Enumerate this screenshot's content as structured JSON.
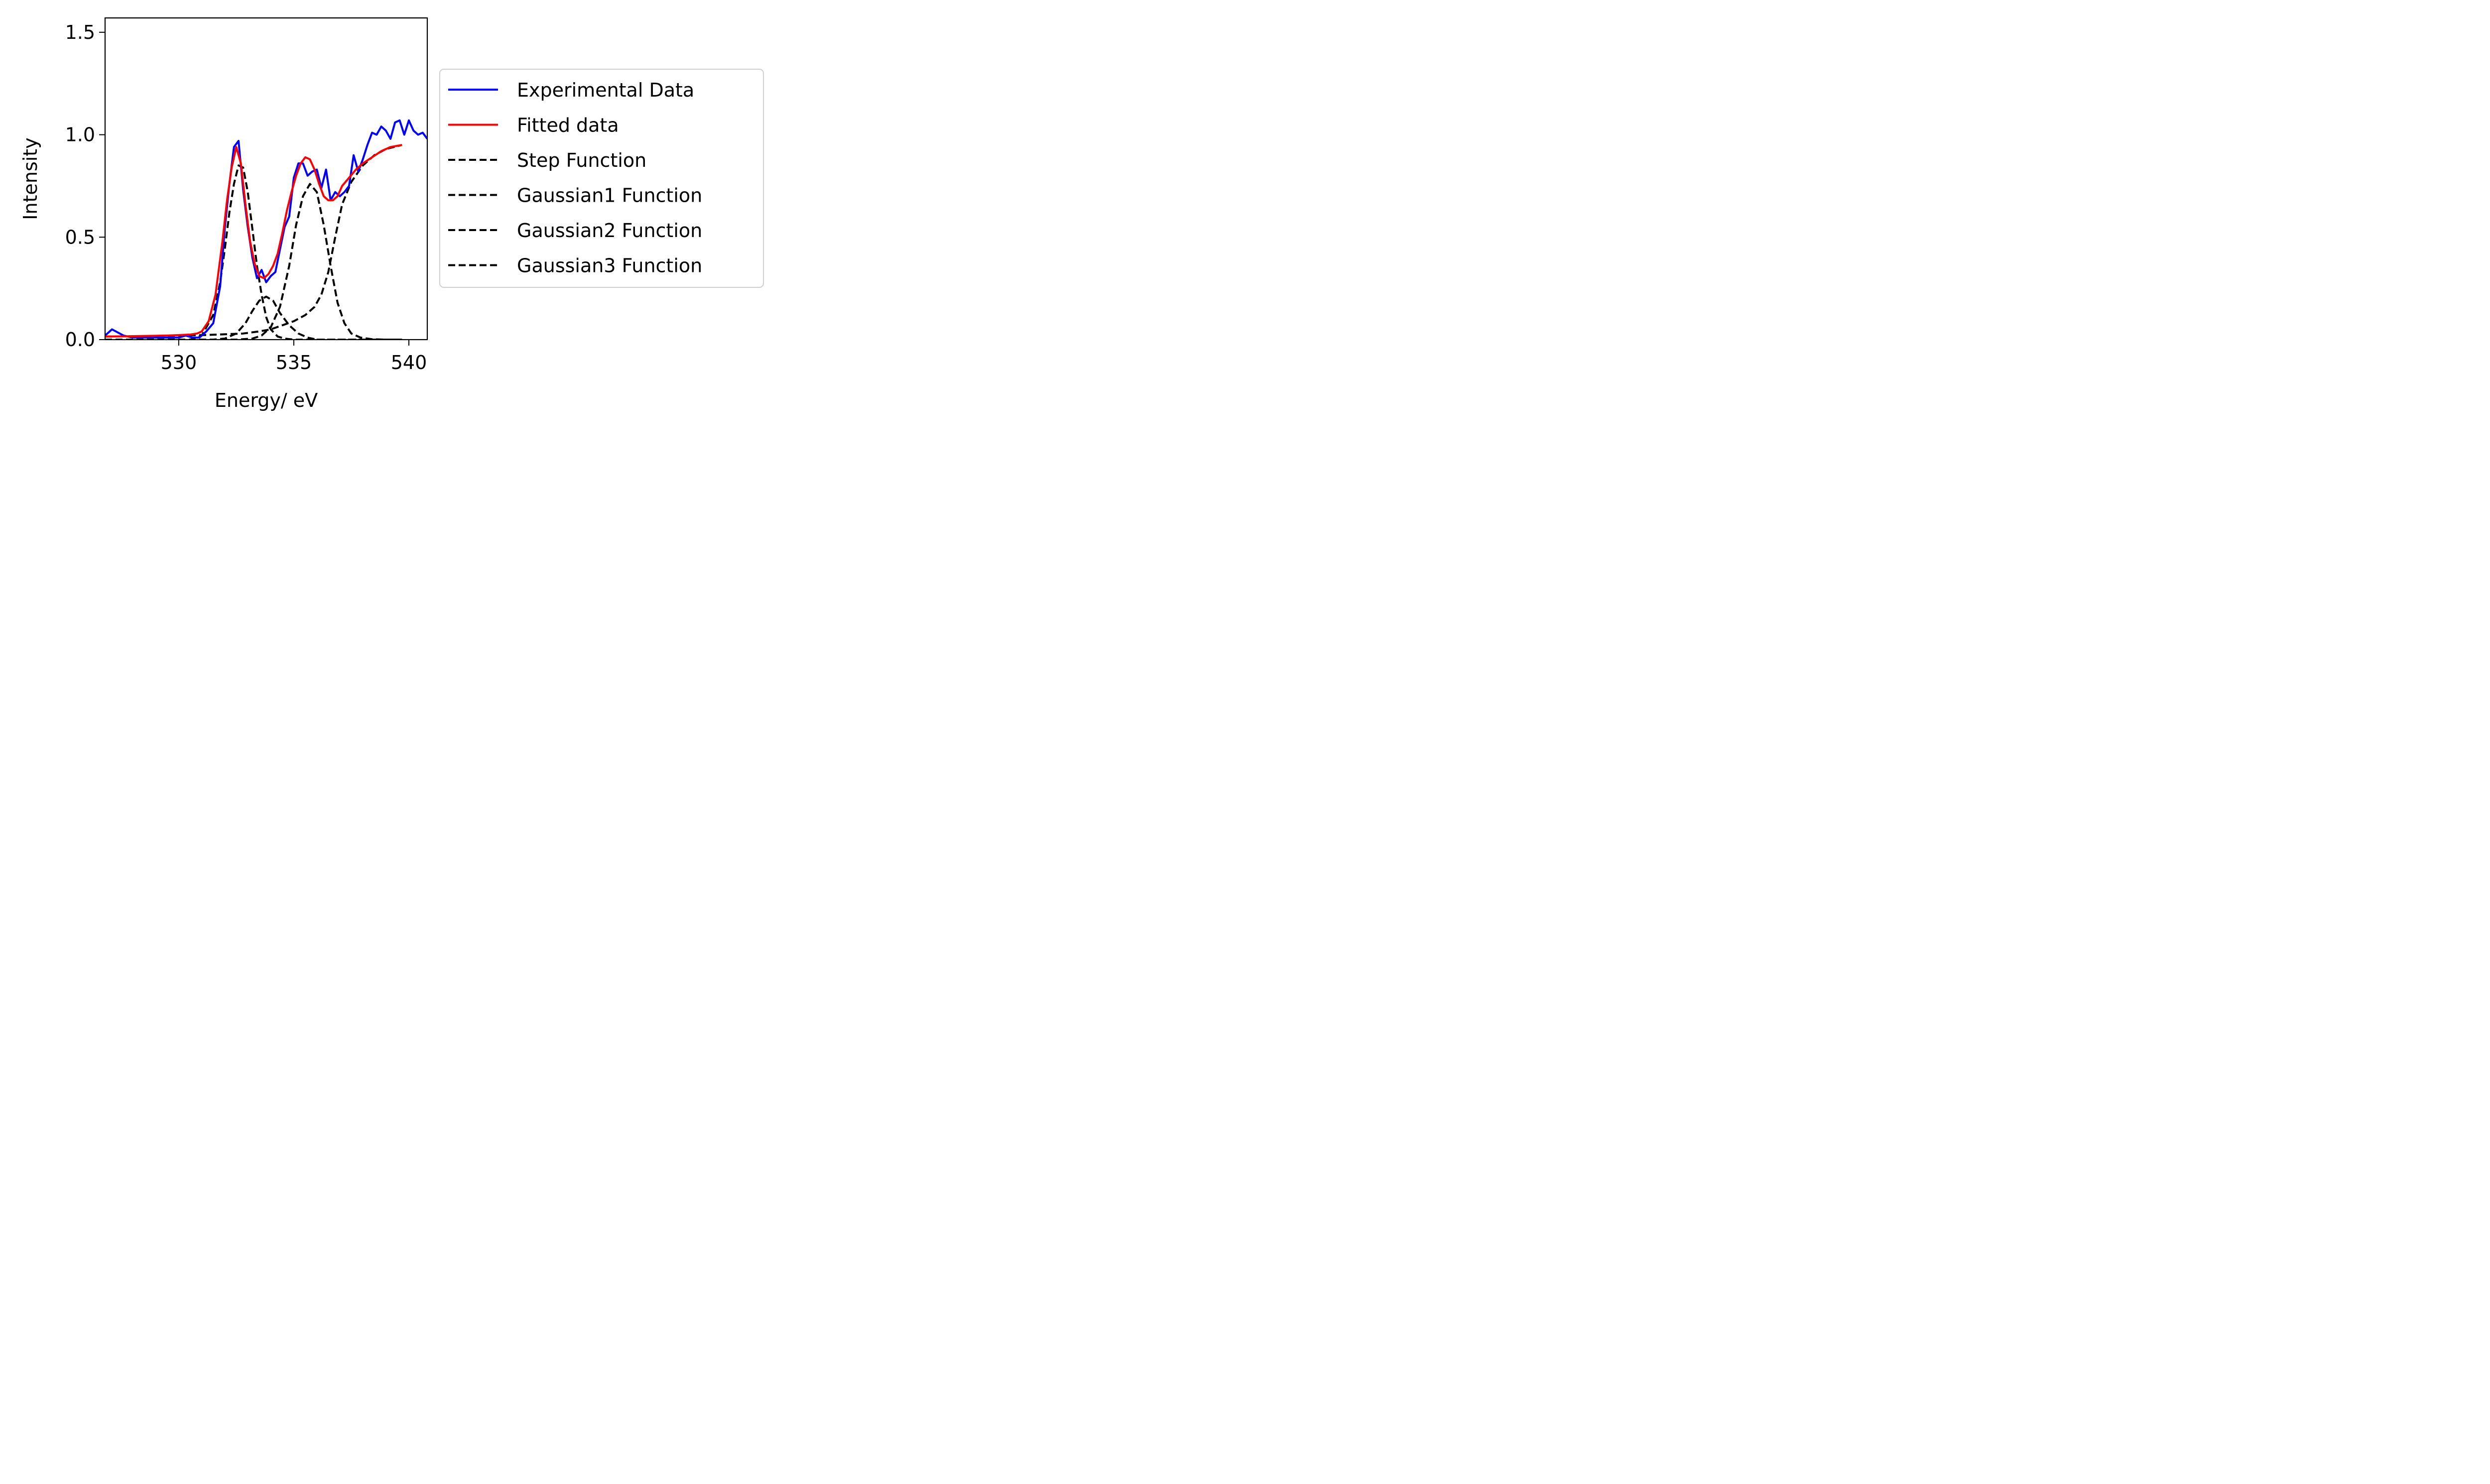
{
  "chart_data": {
    "type": "line",
    "xlabel": "Energy/ eV",
    "ylabel": "Intensity",
    "xlim": [
      526.8,
      540.8
    ],
    "ylim": [
      0,
      1.57
    ],
    "x_ticks": [
      530,
      535,
      540
    ],
    "x_tick_labels": [
      "530",
      "535",
      "540"
    ],
    "y_ticks": [
      0,
      0.5,
      1.0,
      1.5
    ],
    "y_tick_labels": [
      "0.0",
      "0.5",
      "1.0",
      "1.5"
    ],
    "grid": false,
    "legend_position": "right, outside plot area",
    "series": [
      {
        "name": "Experimental Data",
        "color": "#0000ff",
        "style": "solid",
        "x": [
          526.8,
          527.1,
          527.6,
          528.0,
          528.5,
          529.0,
          529.5,
          530.0,
          530.3,
          530.6,
          530.9,
          531.2,
          531.5,
          531.8,
          532.0,
          532.2,
          532.4,
          532.6,
          532.8,
          533.0,
          533.2,
          533.4,
          533.6,
          533.8,
          534.0,
          534.2,
          534.4,
          534.6,
          534.8,
          535.0,
          535.2,
          535.4,
          535.6,
          535.8,
          536.0,
          536.2,
          536.4,
          536.6,
          536.8,
          537.0,
          537.2,
          537.4,
          537.6,
          537.8,
          538.0,
          538.2,
          538.4,
          538.6,
          538.8,
          539.0,
          539.2,
          539.4,
          539.6,
          539.8,
          540.0,
          540.2,
          540.4,
          540.6,
          540.8
        ],
        "y": [
          0.02,
          0.05,
          0.02,
          0.01,
          0.01,
          0.01,
          0.01,
          0.01,
          0.02,
          0.01,
          0.01,
          0.04,
          0.08,
          0.26,
          0.54,
          0.76,
          0.94,
          0.97,
          0.73,
          0.55,
          0.4,
          0.3,
          0.34,
          0.28,
          0.31,
          0.33,
          0.44,
          0.55,
          0.6,
          0.79,
          0.86,
          0.86,
          0.8,
          0.82,
          0.83,
          0.74,
          0.83,
          0.68,
          0.72,
          0.7,
          0.72,
          0.75,
          0.9,
          0.82,
          0.88,
          0.95,
          1.01,
          1.0,
          1.04,
          1.02,
          0.98,
          1.06,
          1.07,
          1.0,
          1.07,
          1.02,
          1.0,
          1.01,
          0.98
        ]
      },
      {
        "name": "Fitted data",
        "color": "#ff0000",
        "style": "solid",
        "x": [
          526.8,
          527.5,
          528.0,
          528.5,
          529.0,
          529.5,
          530.0,
          530.5,
          530.8,
          531.0,
          531.3,
          531.6,
          531.9,
          532.1,
          532.3,
          532.5,
          532.7,
          532.9,
          533.1,
          533.3,
          533.5,
          533.7,
          533.9,
          534.1,
          534.3,
          534.5,
          534.7,
          534.9,
          535.1,
          535.3,
          535.5,
          535.7,
          535.9,
          536.1,
          536.3,
          536.5,
          536.7,
          536.9,
          537.1,
          537.4,
          537.7,
          538.0,
          538.4,
          538.8,
          539.2,
          539.7
        ],
        "y": [
          0.015,
          0.016,
          0.017,
          0.018,
          0.019,
          0.02,
          0.022,
          0.025,
          0.03,
          0.04,
          0.09,
          0.22,
          0.48,
          0.68,
          0.84,
          0.94,
          0.86,
          0.66,
          0.48,
          0.37,
          0.31,
          0.3,
          0.32,
          0.36,
          0.42,
          0.52,
          0.63,
          0.72,
          0.8,
          0.86,
          0.89,
          0.88,
          0.83,
          0.76,
          0.7,
          0.68,
          0.68,
          0.7,
          0.75,
          0.79,
          0.83,
          0.86,
          0.89,
          0.92,
          0.94,
          0.95
        ]
      },
      {
        "name": "Step Function",
        "color": "#000000",
        "style": "dashed",
        "x": [
          526.8,
          528.0,
          529.0,
          530.0,
          531.0,
          532.0,
          532.8,
          533.5,
          534.0,
          534.5,
          535.0,
          535.5,
          535.9,
          536.2,
          536.5,
          536.8,
          537.1,
          537.5,
          538.0,
          538.5,
          539.0,
          539.7
        ],
        "y": [
          0.015,
          0.016,
          0.018,
          0.02,
          0.022,
          0.026,
          0.03,
          0.04,
          0.05,
          0.07,
          0.09,
          0.12,
          0.16,
          0.22,
          0.33,
          0.5,
          0.66,
          0.77,
          0.85,
          0.9,
          0.93,
          0.95
        ]
      },
      {
        "name": "Gaussian1 Function",
        "color": "#000000",
        "style": "dashed",
        "x": [
          526.8,
          529.0,
          530.5,
          531.0,
          531.5,
          531.8,
          532.0,
          532.2,
          532.4,
          532.6,
          532.8,
          533.0,
          533.2,
          533.4,
          533.6,
          533.8,
          534.0,
          534.3,
          534.6,
          535.0,
          536.0,
          537.0,
          538.0,
          539.0,
          539.7
        ],
        "y": [
          0.0,
          0.0,
          0.0,
          0.02,
          0.12,
          0.28,
          0.44,
          0.62,
          0.76,
          0.85,
          0.84,
          0.72,
          0.54,
          0.36,
          0.22,
          0.11,
          0.05,
          0.015,
          0.005,
          0.0,
          0.0,
          0.0,
          0.0,
          0.0,
          0.0
        ]
      },
      {
        "name": "Gaussian2 Function",
        "color": "#000000",
        "style": "dashed",
        "x": [
          526.8,
          530.0,
          531.5,
          532.0,
          532.5,
          532.9,
          533.2,
          533.5,
          533.8,
          534.1,
          534.4,
          534.8,
          535.2,
          535.6,
          536.0,
          537.0,
          538.0,
          539.7
        ],
        "y": [
          0.0,
          0.0,
          0.0,
          0.005,
          0.03,
          0.08,
          0.14,
          0.19,
          0.21,
          0.19,
          0.13,
          0.07,
          0.03,
          0.01,
          0.0,
          0.0,
          0.0,
          0.0
        ],
        "note_source": ""
      },
      {
        "name": "Gaussian3 Function",
        "color": "#000000",
        "style": "dashed",
        "x": [
          526.8,
          531.0,
          532.5,
          533.2,
          533.6,
          534.0,
          534.4,
          534.8,
          535.1,
          535.4,
          535.7,
          536.0,
          536.3,
          536.6,
          536.9,
          537.2,
          537.5,
          537.9,
          538.4,
          539.0,
          539.7
        ],
        "y": [
          0.0,
          0.0,
          0.0,
          0.005,
          0.02,
          0.06,
          0.16,
          0.36,
          0.56,
          0.7,
          0.76,
          0.72,
          0.56,
          0.36,
          0.18,
          0.08,
          0.03,
          0.01,
          0.002,
          0.0,
          0.0
        ]
      }
    ]
  }
}
